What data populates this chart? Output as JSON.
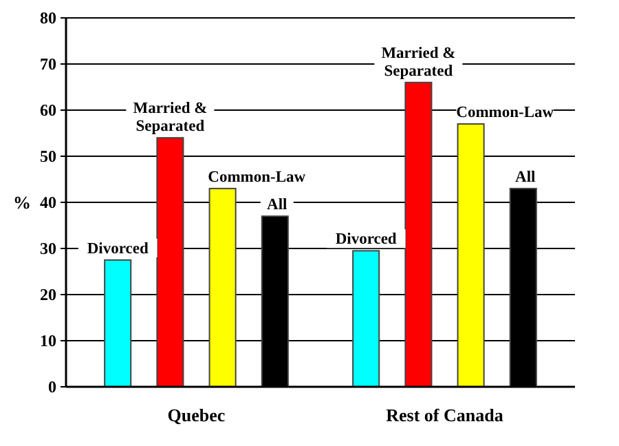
{
  "chart_data": {
    "type": "bar",
    "categories": [
      "Quebec",
      "Rest of Canada"
    ],
    "ylabel": "%",
    "ylim": [
      0,
      80
    ],
    "yticks": [
      0,
      10,
      20,
      30,
      40,
      50,
      60,
      70,
      80
    ],
    "grid": "y",
    "legend": false,
    "series": [
      {
        "name": "Divorced",
        "color": "#00ffff",
        "values": [
          27.5,
          29.5
        ]
      },
      {
        "name": "Married & Separated",
        "color": "#ff0000",
        "values": [
          54,
          66
        ]
      },
      {
        "name": "Common-Law",
        "color": "#ffff00",
        "values": [
          43,
          57
        ]
      },
      {
        "name": "All",
        "color": "#000000",
        "values": [
          37,
          43
        ]
      }
    ]
  }
}
